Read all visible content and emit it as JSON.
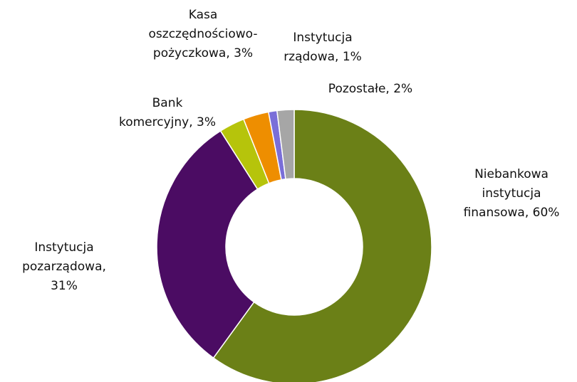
{
  "chart_data": {
    "type": "donut",
    "labels": [
      "Niebankowa instytucja finansowa, 60%",
      "Instytucja pozarządowa, 31%",
      "Bank komercyjny, 3%",
      "Kasa oszczędnościowo-pożyczkowa, 3%",
      "Instytucja rządowa, 1%",
      "Pozostałe, 2%"
    ],
    "values": [
      60,
      31,
      3,
      3,
      1,
      2
    ],
    "colors": [
      "#6b8017",
      "#4b0c63",
      "#b6c40b",
      "#ee8e00",
      "#7a6ed8",
      "#a6a6a6"
    ]
  }
}
